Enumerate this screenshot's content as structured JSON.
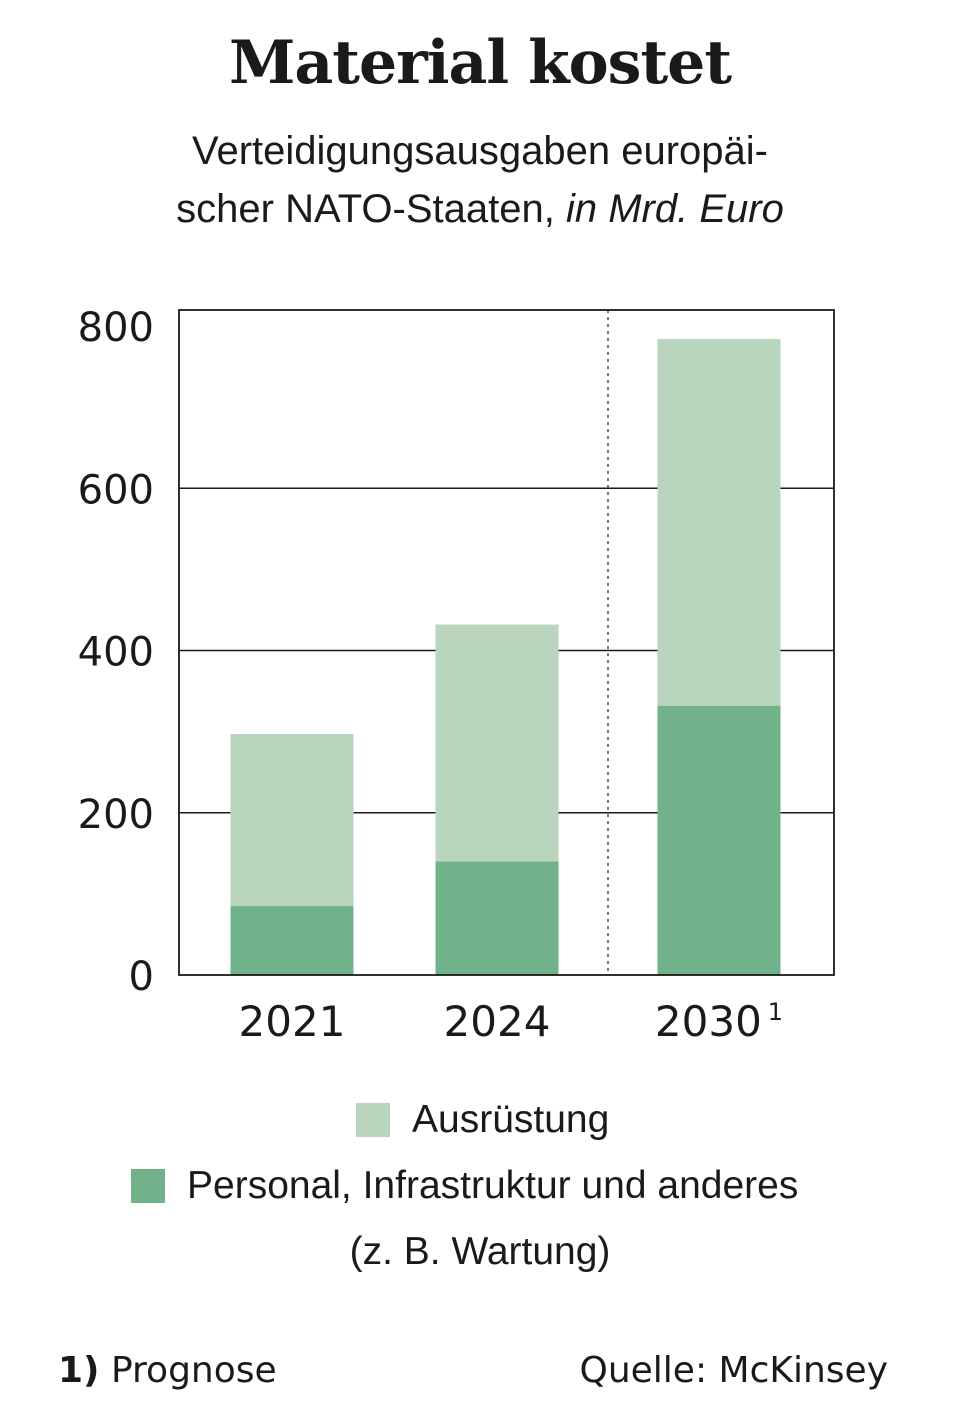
{
  "header": {
    "title": "Material kostet",
    "subtitle_line1": "Verteidigungsausgaben europäi-",
    "subtitle_line2": "scher NATO-Staaten,",
    "unit": "in Mrd. Euro"
  },
  "colors": {
    "ausruestung": "#b9d5bd",
    "personal": "#72b28a"
  },
  "chart_data": {
    "type": "bar",
    "stacked": true,
    "categories": [
      "2021",
      "2024",
      "2030"
    ],
    "category_markers": [
      "",
      "",
      "1"
    ],
    "series": [
      {
        "name": "Personal, Infrastruktur und anderes",
        "values": [
          85,
          140,
          332
        ]
      },
      {
        "name": "Ausrüstung",
        "values": [
          212,
          292,
          452
        ]
      }
    ],
    "y_ticks": [
      0,
      200,
      400,
      600,
      800
    ],
    "ylim": [
      0,
      800
    ],
    "grid": true,
    "forecast_separator_after_index": 1,
    "legend_position": "bottom"
  },
  "legend": {
    "item1": "Ausrüstung",
    "item2": "Personal, Infrastruktur und anderes",
    "item2_note": "(z. B. Wartung)"
  },
  "footer": {
    "footnote_mark": "1)",
    "footnote_text": "Prognose",
    "source": "Quelle: McKinsey"
  }
}
